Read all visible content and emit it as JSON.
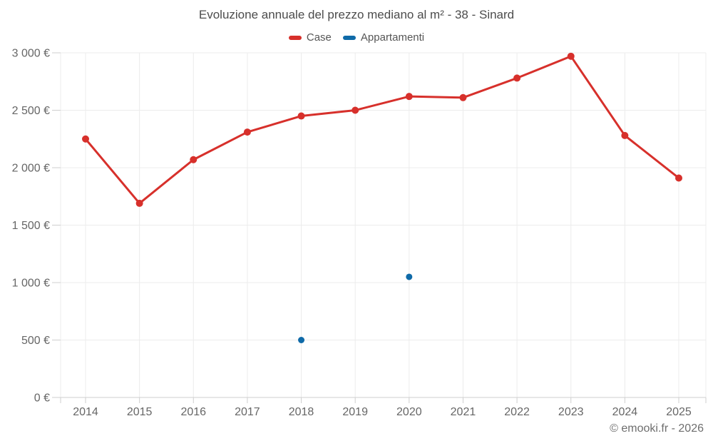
{
  "title": "Evoluzione annuale del prezzo mediano al m² - 38 - Sinard",
  "legend": {
    "items": [
      {
        "label": "Case",
        "color": "#d7302b"
      },
      {
        "label": "Appartamenti",
        "color": "#0f6aa8"
      }
    ]
  },
  "footer": {
    "copyright": "© emooki.fr - 2026"
  },
  "colors": {
    "case_series": "#d7302b",
    "appartamenti_series": "#0f6aa8",
    "gridline": "#ececec",
    "axis": "#cfcfcf",
    "tick_label": "#666666",
    "title_text": "#4c4c4c"
  },
  "chart_data": {
    "type": "line",
    "title": "Evoluzione annuale del prezzo mediano al m² - 38 - Sinard",
    "categories": [
      "2014",
      "2015",
      "2016",
      "2017",
      "2018",
      "2019",
      "2020",
      "2021",
      "2022",
      "2023",
      "2024",
      "2025"
    ],
    "series": [
      {
        "name": "Case",
        "color": "#d7302b",
        "values": [
          2250,
          1690,
          2070,
          2310,
          2450,
          2500,
          2620,
          2610,
          2780,
          2970,
          2280,
          1910
        ]
      },
      {
        "name": "Appartamenti",
        "color": "#0f6aa8",
        "values": [
          null,
          null,
          null,
          null,
          500,
          null,
          1050,
          null,
          null,
          null,
          null,
          null
        ]
      }
    ],
    "xlabel": "",
    "ylabel": "",
    "ylim": [
      0,
      3000
    ],
    "y_tick_step": 500,
    "y_tick_labels": [
      "0 €",
      "500 €",
      "1 000 €",
      "1 500 €",
      "2 000 €",
      "2 500 €",
      "3 000 €"
    ],
    "currency": "€",
    "grid": true,
    "legend_position": "top"
  }
}
